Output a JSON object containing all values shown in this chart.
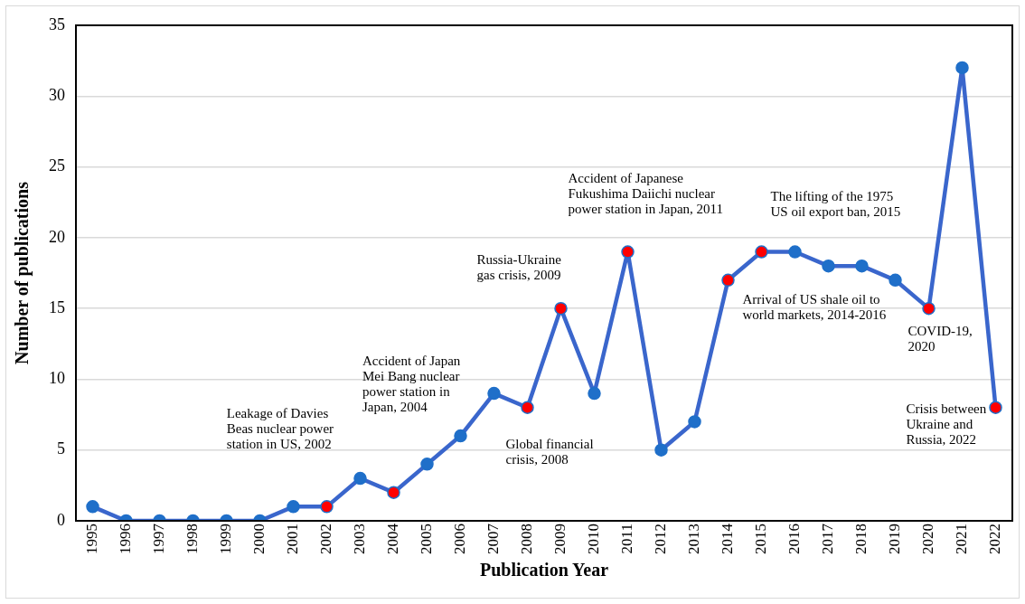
{
  "chart_data": {
    "type": "line",
    "xlabel": "Publication Year",
    "ylabel": "Number of publications",
    "categories": [
      "1995",
      "1996",
      "1997",
      "1998",
      "1999",
      "2000",
      "2001",
      "2002",
      "2003",
      "2004",
      "2005",
      "2006",
      "2007",
      "2008",
      "2009",
      "2010",
      "2011",
      "2012",
      "2013",
      "2014",
      "2015",
      "2016",
      "2017",
      "2018",
      "2019",
      "2020",
      "2021",
      "2022"
    ],
    "series": [
      {
        "color": "#3a66cc",
        "values": [
          1,
          0,
          0,
          0,
          0,
          0,
          1,
          1,
          3,
          2,
          4,
          6,
          9,
          8,
          15,
          9,
          19,
          5,
          7,
          17,
          19,
          19,
          18,
          18,
          17,
          15,
          32,
          8
        ],
        "colors": [
          "#1f6fc9",
          "#1f6fc9",
          "#1f6fc9",
          "#1f6fc9",
          "#1f6fc9",
          "#1f6fc9",
          "#1f6fc9",
          "#ff0000",
          "#1f6fc9",
          "#ff0000",
          "#1f6fc9",
          "#1f6fc9",
          "#1f6fc9",
          "#ff0000",
          "#ff0000",
          "#1f6fc9",
          "#ff0000",
          "#1f6fc9",
          "#1f6fc9",
          "#ff0000",
          "#ff0000",
          "#1f6fc9",
          "#1f6fc9",
          "#1f6fc9",
          "#1f6fc9",
          "#ff0000",
          "#1f6fc9",
          "#ff0000"
        ]
      }
    ],
    "ylim": [
      0,
      35
    ],
    "yticks": [
      0,
      5,
      10,
      15,
      20,
      25,
      30,
      35
    ],
    "grid": "y",
    "legend": false,
    "marker": "circle",
    "line_style": "solid",
    "annotations": [
      "Leakage of Davies Beas nuclear power station in US, 2002",
      "Accident of Japan Mei Bang nuclear power station in Japan, 2004",
      {
        "text": "Global financial crisis, 2008",
        "x": "2008",
        "y": 8
      },
      {
        "text": "Russia-Ukraine gas crisis, 2009",
        "x": "2009",
        "y": 15
      },
      {
        "text": "Accident of Japanese Fukushima Daiichi nuclear power station in Japan, 2011",
        "x": "2011",
        "y": 19
      },
      {
        "text": "The lifting of the 1975 US oil export ban, 2015",
        "x": "2015",
        "y": 19
      },
      {
        "text": "Arrival of US shale oil to world markets, 2014-2016",
        "x": "2014",
        "y": 17
      },
      {
        "text": "COVID-19, 2020",
        "x": "2020",
        "y": 15
      },
      {
        "text": "Crisis between Ukraine and Russia, 2022",
        "x": "2022",
        "y": 8
      }
    ]
  }
}
